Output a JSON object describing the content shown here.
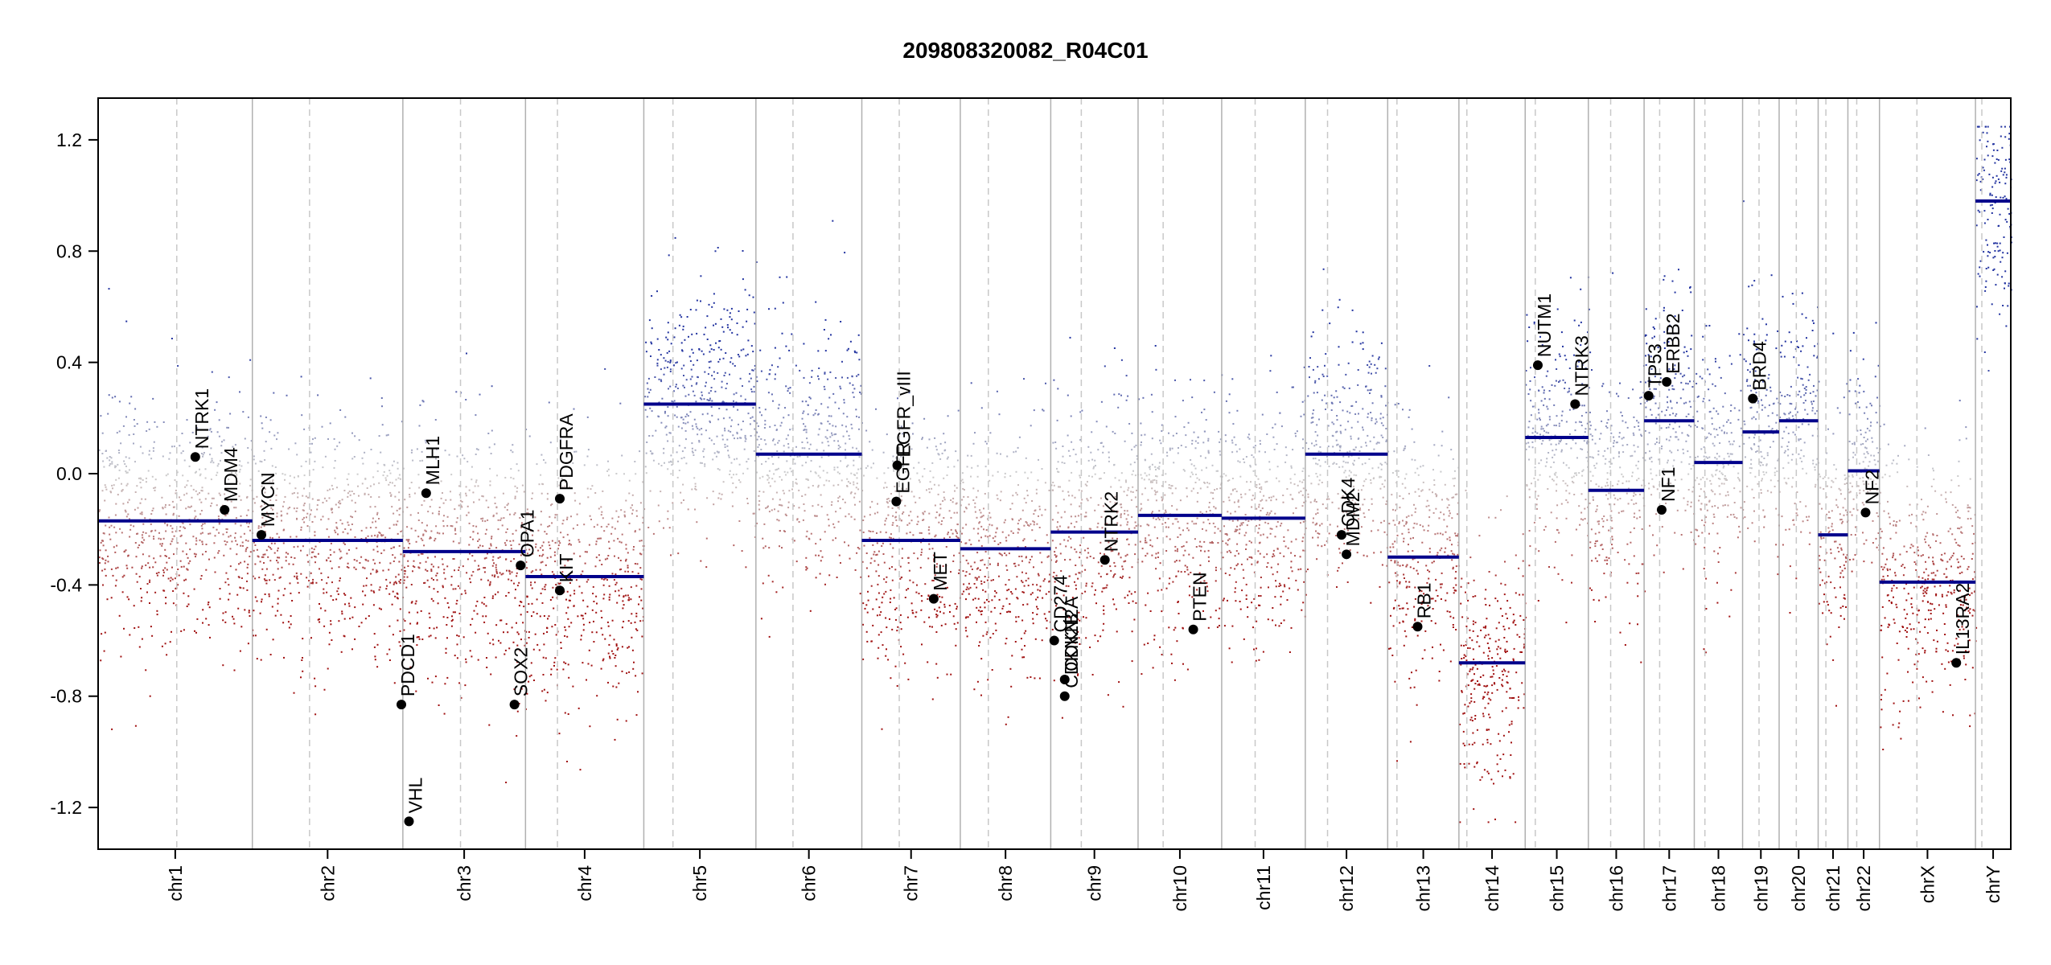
{
  "chart_data": {
    "type": "scatter",
    "title": "209808320082_R04C01",
    "xlabel": "",
    "ylabel": "",
    "ylim": [
      -1.35,
      1.35
    ],
    "yticks": [
      -1.2,
      -0.8,
      -0.4,
      0.0,
      0.4,
      0.8,
      1.2
    ],
    "ytick_labels": [
      "-1.2",
      "-0.8",
      "-0.4",
      "0.0",
      "0.4",
      "0.8",
      "1.2"
    ],
    "colors": {
      "gain": "#2233a0",
      "neutral": "#cccccc",
      "loss": "#a01010",
      "segment": "#00008b",
      "boundary": "#b0b0b0",
      "centromere": "#c8c8c8"
    },
    "chromosomes": [
      {
        "name": "chr1",
        "length": 249,
        "centromere": 0.51,
        "segments": [
          {
            "start": 0,
            "end": 1,
            "value": -0.17
          }
        ]
      },
      {
        "name": "chr2",
        "length": 243,
        "centromere": 0.38,
        "segments": [
          {
            "start": 0,
            "end": 1,
            "value": -0.24
          }
        ]
      },
      {
        "name": "chr3",
        "length": 198,
        "centromere": 0.47,
        "segments": [
          {
            "start": 0,
            "end": 1,
            "value": -0.28
          }
        ]
      },
      {
        "name": "chr4",
        "length": 191,
        "centromere": 0.27,
        "segments": [
          {
            "start": 0,
            "end": 1,
            "value": -0.37
          }
        ]
      },
      {
        "name": "chr5",
        "length": 181,
        "centromere": 0.26,
        "segments": [
          {
            "start": 0,
            "end": 1,
            "value": 0.25
          }
        ]
      },
      {
        "name": "chr6",
        "length": 171,
        "centromere": 0.35,
        "segments": [
          {
            "start": 0,
            "end": 1,
            "value": 0.07
          }
        ]
      },
      {
        "name": "chr7",
        "length": 159,
        "centromere": 0.38,
        "segments": [
          {
            "start": 0,
            "end": 1,
            "value": -0.24
          }
        ]
      },
      {
        "name": "chr8",
        "length": 146,
        "centromere": 0.31,
        "segments": [
          {
            "start": 0,
            "end": 1,
            "value": -0.27
          }
        ]
      },
      {
        "name": "chr9",
        "length": 141,
        "centromere": 0.35,
        "segments": [
          {
            "start": 0,
            "end": 1,
            "value": -0.21
          }
        ]
      },
      {
        "name": "chr10",
        "length": 135,
        "centromere": 0.3,
        "segments": [
          {
            "start": 0,
            "end": 1,
            "value": -0.15
          }
        ]
      },
      {
        "name": "chr11",
        "length": 135,
        "centromere": 0.4,
        "segments": [
          {
            "start": 0,
            "end": 1,
            "value": -0.16
          }
        ]
      },
      {
        "name": "chr12",
        "length": 133,
        "centromere": 0.27,
        "segments": [
          {
            "start": 0,
            "end": 1,
            "value": 0.07
          }
        ]
      },
      {
        "name": "chr13",
        "length": 115,
        "centromere": 0.13,
        "segments": [
          {
            "start": 0,
            "end": 1,
            "value": -0.3
          }
        ]
      },
      {
        "name": "chr14",
        "length": 107,
        "centromere": 0.12,
        "segments": [
          {
            "start": 0,
            "end": 1,
            "value": -0.68
          }
        ]
      },
      {
        "name": "chr15",
        "length": 102,
        "centromere": 0.16,
        "segments": [
          {
            "start": 0,
            "end": 1,
            "value": 0.13
          }
        ]
      },
      {
        "name": "chr16",
        "length": 90,
        "centromere": 0.4,
        "segments": [
          {
            "start": 0,
            "end": 1,
            "value": -0.06
          }
        ]
      },
      {
        "name": "chr17",
        "length": 81,
        "centromere": 0.31,
        "segments": [
          {
            "start": 0,
            "end": 1,
            "value": 0.19
          }
        ]
      },
      {
        "name": "chr18",
        "length": 78,
        "centromere": 0.22,
        "segments": [
          {
            "start": 0,
            "end": 1,
            "value": 0.04
          }
        ]
      },
      {
        "name": "chr19",
        "length": 59,
        "centromere": 0.45,
        "segments": [
          {
            "start": 0,
            "end": 1,
            "value": 0.15
          }
        ]
      },
      {
        "name": "chr20",
        "length": 63,
        "centromere": 0.44,
        "segments": [
          {
            "start": 0,
            "end": 1,
            "value": 0.19
          }
        ]
      },
      {
        "name": "chr21",
        "length": 48,
        "centromere": 0.26,
        "segments": [
          {
            "start": 0,
            "end": 1,
            "value": -0.22
          }
        ]
      },
      {
        "name": "chr22",
        "length": 51,
        "centromere": 0.28,
        "segments": [
          {
            "start": 0,
            "end": 1,
            "value": 0.01
          }
        ]
      },
      {
        "name": "chrX",
        "length": 155,
        "centromere": 0.39,
        "segments": [
          {
            "start": 0,
            "end": 1,
            "value": -0.39
          }
        ]
      },
      {
        "name": "chrY",
        "length": 57,
        "centromere": 0.18,
        "segments": [
          {
            "start": 0,
            "end": 1,
            "value": 0.98
          }
        ]
      }
    ],
    "genes": [
      {
        "name": "NTRK1",
        "chr": "chr1",
        "pos": 0.63,
        "value": 0.06
      },
      {
        "name": "MDM4",
        "chr": "chr1",
        "pos": 0.82,
        "value": -0.13
      },
      {
        "name": "MYCN",
        "chr": "chr2",
        "pos": 0.06,
        "value": -0.22
      },
      {
        "name": "PDCD1",
        "chr": "chr2",
        "pos": 0.99,
        "value": -0.83
      },
      {
        "name": "VHL",
        "chr": "chr3",
        "pos": 0.05,
        "value": -1.25
      },
      {
        "name": "MLH1",
        "chr": "chr3",
        "pos": 0.19,
        "value": -0.07
      },
      {
        "name": "SOX2",
        "chr": "chr3",
        "pos": 0.91,
        "value": -0.83
      },
      {
        "name": "OPA1",
        "chr": "chr3",
        "pos": 0.96,
        "value": -0.33
      },
      {
        "name": "PDGFRA",
        "chr": "chr4",
        "pos": 0.29,
        "value": -0.09
      },
      {
        "name": "KIT",
        "chr": "chr4",
        "pos": 0.29,
        "value": -0.42
      },
      {
        "name": "EGFR_vIII",
        "chr": "chr7",
        "pos": 0.36,
        "value": 0.03
      },
      {
        "name": "EGFR",
        "chr": "chr7",
        "pos": 0.35,
        "value": -0.1
      },
      {
        "name": "MET",
        "chr": "chr7",
        "pos": 0.73,
        "value": -0.45
      },
      {
        "name": "CD274",
        "chr": "chr9",
        "pos": 0.04,
        "value": -0.6
      },
      {
        "name": "CDKN2A",
        "chr": "chr9",
        "pos": 0.16,
        "value": -0.74
      },
      {
        "name": "CDKN2B",
        "chr": "chr9",
        "pos": 0.16,
        "value": -0.8
      },
      {
        "name": "NTRK2",
        "chr": "chr9",
        "pos": 0.62,
        "value": -0.31
      },
      {
        "name": "PTEN",
        "chr": "chr10",
        "pos": 0.66,
        "value": -0.56
      },
      {
        "name": "CDK4",
        "chr": "chr12",
        "pos": 0.44,
        "value": -0.22
      },
      {
        "name": "MDM2",
        "chr": "chr12",
        "pos": 0.5,
        "value": -0.29
      },
      {
        "name": "RB1",
        "chr": "chr13",
        "pos": 0.42,
        "value": -0.55
      },
      {
        "name": "NUTM1",
        "chr": "chr15",
        "pos": 0.2,
        "value": 0.39
      },
      {
        "name": "NTRK3",
        "chr": "chr15",
        "pos": 0.79,
        "value": 0.25
      },
      {
        "name": "TP53",
        "chr": "chr17",
        "pos": 0.09,
        "value": 0.28
      },
      {
        "name": "NF1",
        "chr": "chr17",
        "pos": 0.35,
        "value": -0.13
      },
      {
        "name": "ERBB2",
        "chr": "chr17",
        "pos": 0.45,
        "value": 0.33
      },
      {
        "name": "BRD4",
        "chr": "chr19",
        "pos": 0.28,
        "value": 0.27
      },
      {
        "name": "NF2",
        "chr": "chr22",
        "pos": 0.56,
        "value": -0.14
      },
      {
        "name": "IL13RA2",
        "chr": "chrX",
        "pos": 0.8,
        "value": -0.68
      }
    ]
  }
}
